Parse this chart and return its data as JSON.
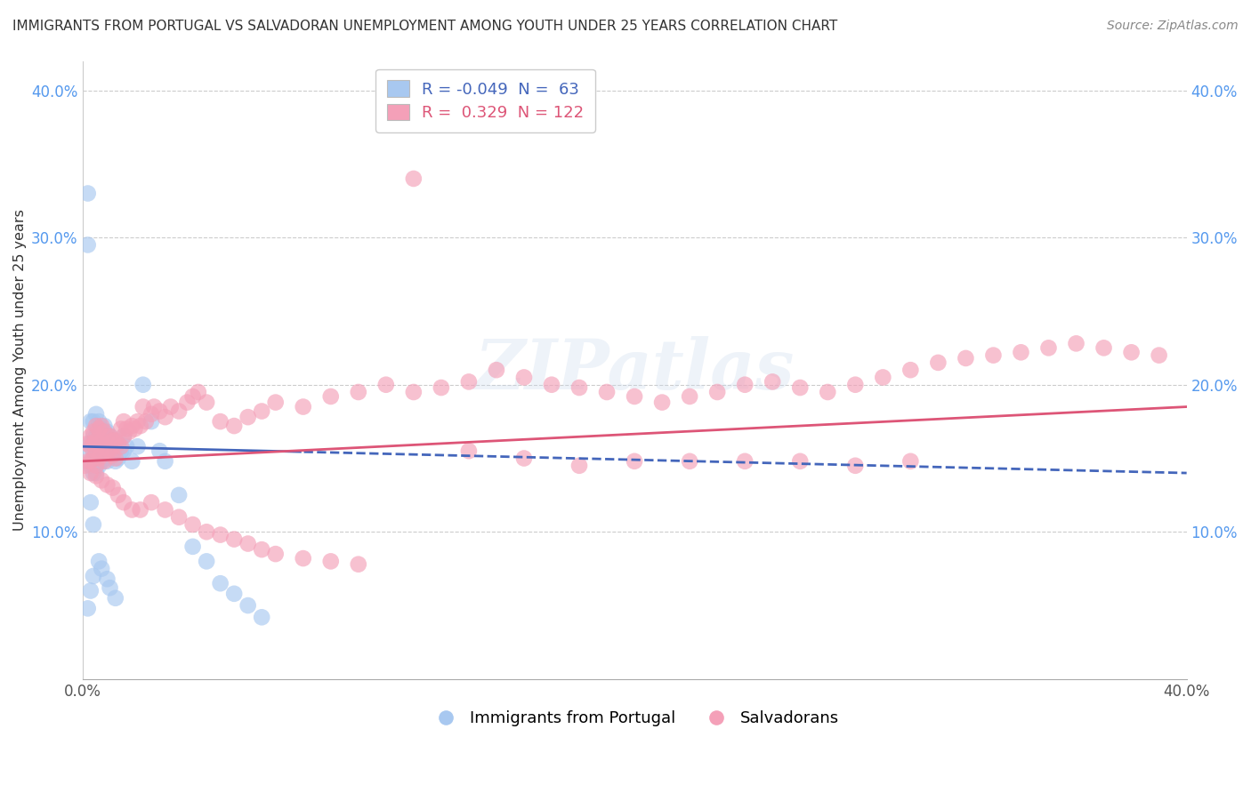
{
  "title": "IMMIGRANTS FROM PORTUGAL VS SALVADORAN UNEMPLOYMENT AMONG YOUTH UNDER 25 YEARS CORRELATION CHART",
  "source": "Source: ZipAtlas.com",
  "ylabel": "Unemployment Among Youth under 25 years",
  "legend_blue_R": "-0.049",
  "legend_blue_N": "63",
  "legend_pink_R": "0.329",
  "legend_pink_N": "122",
  "legend_label_blue": "Immigrants from Portugal",
  "legend_label_pink": "Salvadorans",
  "xlim": [
    0.0,
    0.4
  ],
  "ylim": [
    0.0,
    0.42
  ],
  "yticks": [
    0.1,
    0.2,
    0.3,
    0.4
  ],
  "ytick_labels": [
    "10.0%",
    "20.0%",
    "30.0%",
    "40.0%"
  ],
  "xticks": [
    0.0,
    0.1,
    0.2,
    0.3,
    0.4
  ],
  "xtick_labels": [
    "0.0%",
    "",
    "",
    "",
    "40.0%"
  ],
  "blue_color": "#a8c8f0",
  "pink_color": "#f4a0b8",
  "blue_line_color": "#4466bb",
  "pink_line_color": "#dd5577",
  "background_color": "#ffffff",
  "grid_color": "#cccccc",
  "watermark": "ZIPatlas",
  "blue_points_x": [
    0.001,
    0.002,
    0.002,
    0.003,
    0.003,
    0.003,
    0.004,
    0.004,
    0.004,
    0.004,
    0.005,
    0.005,
    0.005,
    0.005,
    0.005,
    0.006,
    0.006,
    0.006,
    0.006,
    0.007,
    0.007,
    0.007,
    0.008,
    0.008,
    0.008,
    0.009,
    0.009,
    0.009,
    0.01,
    0.01,
    0.011,
    0.011,
    0.012,
    0.012,
    0.013,
    0.013,
    0.014,
    0.015,
    0.015,
    0.016,
    0.018,
    0.02,
    0.022,
    0.025,
    0.028,
    0.03,
    0.035,
    0.04,
    0.045,
    0.05,
    0.055,
    0.06,
    0.065,
    0.002,
    0.003,
    0.004,
    0.006,
    0.007,
    0.009,
    0.01,
    0.012,
    0.003,
    0.004
  ],
  "blue_points_y": [
    0.155,
    0.33,
    0.295,
    0.175,
    0.16,
    0.145,
    0.175,
    0.165,
    0.155,
    0.14,
    0.18,
    0.165,
    0.158,
    0.15,
    0.14,
    0.175,
    0.162,
    0.155,
    0.145,
    0.17,
    0.158,
    0.148,
    0.172,
    0.16,
    0.15,
    0.168,
    0.158,
    0.148,
    0.165,
    0.155,
    0.162,
    0.152,
    0.158,
    0.148,
    0.16,
    0.15,
    0.155,
    0.165,
    0.155,
    0.158,
    0.148,
    0.158,
    0.2,
    0.175,
    0.155,
    0.148,
    0.125,
    0.09,
    0.08,
    0.065,
    0.058,
    0.05,
    0.042,
    0.048,
    0.06,
    0.07,
    0.08,
    0.075,
    0.068,
    0.062,
    0.055,
    0.12,
    0.105
  ],
  "pink_points_x": [
    0.001,
    0.002,
    0.002,
    0.003,
    0.003,
    0.003,
    0.004,
    0.004,
    0.004,
    0.005,
    0.005,
    0.005,
    0.005,
    0.006,
    0.006,
    0.006,
    0.007,
    0.007,
    0.007,
    0.008,
    0.008,
    0.008,
    0.009,
    0.009,
    0.01,
    0.01,
    0.011,
    0.011,
    0.012,
    0.012,
    0.013,
    0.014,
    0.014,
    0.015,
    0.015,
    0.016,
    0.017,
    0.018,
    0.019,
    0.02,
    0.021,
    0.022,
    0.023,
    0.025,
    0.026,
    0.028,
    0.03,
    0.032,
    0.035,
    0.038,
    0.04,
    0.042,
    0.045,
    0.05,
    0.055,
    0.06,
    0.065,
    0.07,
    0.08,
    0.09,
    0.1,
    0.11,
    0.12,
    0.13,
    0.14,
    0.15,
    0.16,
    0.17,
    0.18,
    0.19,
    0.2,
    0.21,
    0.22,
    0.23,
    0.24,
    0.25,
    0.26,
    0.27,
    0.28,
    0.29,
    0.3,
    0.31,
    0.32,
    0.33,
    0.34,
    0.35,
    0.36,
    0.37,
    0.38,
    0.39,
    0.003,
    0.005,
    0.007,
    0.009,
    0.011,
    0.013,
    0.015,
    0.018,
    0.021,
    0.025,
    0.03,
    0.035,
    0.04,
    0.045,
    0.05,
    0.055,
    0.06,
    0.065,
    0.07,
    0.08,
    0.09,
    0.1,
    0.12,
    0.14,
    0.16,
    0.18,
    0.2,
    0.22,
    0.24,
    0.26,
    0.28,
    0.3
  ],
  "pink_points_y": [
    0.145,
    0.16,
    0.148,
    0.165,
    0.158,
    0.148,
    0.168,
    0.16,
    0.15,
    0.172,
    0.162,
    0.155,
    0.145,
    0.17,
    0.16,
    0.15,
    0.172,
    0.162,
    0.152,
    0.168,
    0.158,
    0.148,
    0.165,
    0.155,
    0.165,
    0.155,
    0.162,
    0.152,
    0.162,
    0.15,
    0.16,
    0.17,
    0.158,
    0.175,
    0.165,
    0.17,
    0.168,
    0.172,
    0.17,
    0.175,
    0.172,
    0.185,
    0.175,
    0.18,
    0.185,
    0.182,
    0.178,
    0.185,
    0.182,
    0.188,
    0.192,
    0.195,
    0.188,
    0.175,
    0.172,
    0.178,
    0.182,
    0.188,
    0.185,
    0.192,
    0.195,
    0.2,
    0.195,
    0.198,
    0.202,
    0.21,
    0.205,
    0.2,
    0.198,
    0.195,
    0.192,
    0.188,
    0.192,
    0.195,
    0.2,
    0.202,
    0.198,
    0.195,
    0.2,
    0.205,
    0.21,
    0.215,
    0.218,
    0.22,
    0.222,
    0.225,
    0.228,
    0.225,
    0.222,
    0.22,
    0.14,
    0.138,
    0.135,
    0.132,
    0.13,
    0.125,
    0.12,
    0.115,
    0.115,
    0.12,
    0.115,
    0.11,
    0.105,
    0.1,
    0.098,
    0.095,
    0.092,
    0.088,
    0.085,
    0.082,
    0.08,
    0.078,
    0.34,
    0.155,
    0.15,
    0.145,
    0.148,
    0.148,
    0.148,
    0.148,
    0.145,
    0.148
  ],
  "blue_trend_x0": 0.0,
  "blue_trend_x1": 0.4,
  "blue_trend_y0": 0.158,
  "blue_trend_y1": 0.14,
  "pink_trend_x0": 0.0,
  "pink_trend_x1": 0.4,
  "pink_trend_y0": 0.148,
  "pink_trend_y1": 0.185
}
